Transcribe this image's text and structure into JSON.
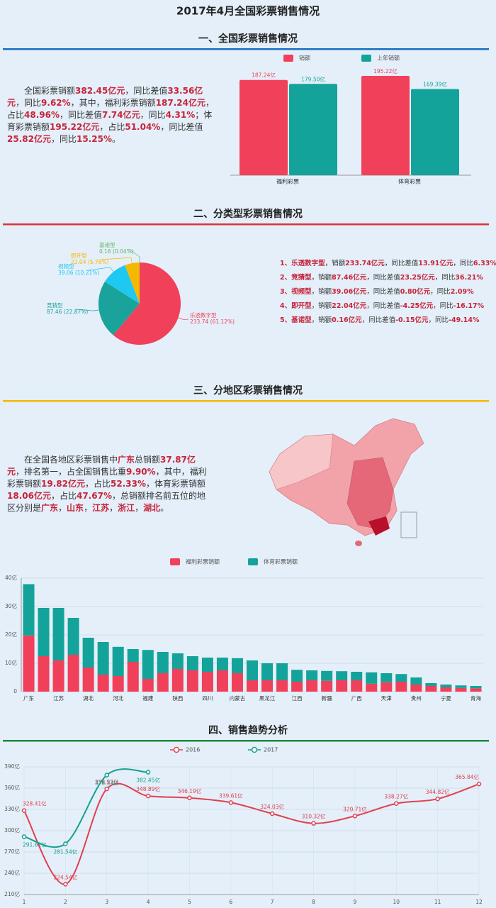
{
  "title": "2017年4月全国彩票销售情况",
  "sections": [
    {
      "title": "一、全国彩票销售情况",
      "color": "#1a6fc0"
    },
    {
      "title": "二、分类型彩票销售情况",
      "color": "#d9343a"
    },
    {
      "title": "三、分地区彩票销售情况",
      "color": "#f5b800"
    },
    {
      "title": "四、销售趋势分析",
      "color": "#1f8a3a"
    }
  ],
  "summary": [
    "全国彩票销额",
    "382.45亿元",
    "，同比差值",
    "33.56亿元",
    "，同比",
    "9.62%",
    "，其中，福利彩票销额",
    "187.24亿元",
    "，占比",
    "48.96%",
    "，同比差值",
    "7.74亿元",
    "，同比",
    "4.31%",
    "；体育彩票销额",
    "195.22亿元",
    "，占比",
    "51.04%",
    "，同比差值",
    "25.82亿元",
    "，同比",
    "15.25%",
    "。"
  ],
  "type_notes": [
    [
      "1、乐透数字型",
      "，销额",
      "233.74亿元",
      "，同比差值",
      "13.91亿元",
      "，同比",
      "6.33%"
    ],
    [
      "2、竞猜型",
      "，销额",
      "87.46亿元",
      "，同比差值",
      "23.25亿元",
      "，同比",
      "36.21%"
    ],
    [
      "3、视频型",
      "，销额",
      "39.06亿元",
      "，同比差值",
      "0.80亿元",
      "，同比",
      "2.09%"
    ],
    [
      "4、即开型",
      "，销额",
      "22.04亿元",
      "，同比差值",
      "-4.25亿元",
      "，同比",
      "-16.17%"
    ],
    [
      "5、基诺型",
      "，销额",
      "0.16亿元",
      "，同比差值",
      "-0.15亿元",
      "，同比",
      "-49.14%"
    ]
  ],
  "region_summary": [
    "在全国各地区彩票销售中",
    "广东",
    "总销额",
    "37.87亿元",
    "，排名第一，占全国销售比重",
    "9.90%",
    "，其中，福利彩票销额",
    "19.82亿元",
    "，占比",
    "52.33%",
    "，体育彩票销额",
    "18.06亿元",
    "，占比",
    "47.67%",
    "，总销额排名前五位的地区分别是",
    "广东",
    "，",
    "山东",
    "，",
    "江苏",
    "，",
    "浙江",
    "，",
    "湖北",
    "。"
  ],
  "chart_data": [
    {
      "type": "bar",
      "categories": [
        "福利彩票",
        "体育彩票"
      ],
      "series": [
        {
          "name": "销额",
          "color": "#f0405a",
          "values": [
            187.24,
            195.22
          ],
          "value_labels": [
            "187.24亿",
            "195.22亿"
          ]
        },
        {
          "name": "上年销额",
          "color": "#14a39a",
          "values": [
            179.5,
            169.39
          ],
          "value_labels": [
            "179.50亿",
            "169.39亿"
          ]
        }
      ]
    },
    {
      "type": "pie",
      "categories": [
        "乐透数字型",
        "竞猜型",
        "视频型",
        "即开型",
        "基诺型"
      ],
      "values": [
        233.74,
        87.46,
        39.06,
        22.04,
        0.16
      ],
      "value_labels": [
        "233.74 (61.12%)",
        "87.46 (22.87%)",
        "39.06 (10.21%)",
        "22.04 (5.76%)",
        "0.16 (0.04%)"
      ],
      "colors": [
        "#f0405a",
        "#1aa39a",
        "#1ec8f0",
        "#f5b800",
        "#5cb85c"
      ]
    },
    {
      "type": "stacked_bar",
      "categories": [
        "广东",
        null,
        "江苏",
        null,
        "湖北",
        null,
        "河北",
        null,
        "福建",
        null,
        "陕西",
        null,
        "四川",
        null,
        "内蒙古",
        null,
        "黑龙江",
        null,
        "江西",
        null,
        "新疆",
        null,
        "广西",
        null,
        "天津",
        null,
        "贵州",
        null,
        "宁夏",
        null,
        "青海"
      ],
      "series": [
        {
          "name": "福利彩票销额",
          "color": "#f0405a",
          "values": [
            19.82,
            12.5,
            11,
            13,
            8.5,
            6,
            5.5,
            10.5,
            4.5,
            6.5,
            8,
            7.5,
            7,
            7.5,
            6.5,
            4,
            4,
            4,
            3.5,
            4,
            3.8,
            4,
            4,
            2.8,
            3.3,
            3.5,
            2.5,
            2,
            1.5,
            1.3,
            1.2
          ]
        },
        {
          "name": "体育彩票销额",
          "color": "#14a39a",
          "values": [
            18.06,
            17,
            18.5,
            13,
            10.5,
            11.5,
            10.3,
            4.5,
            10.2,
            7.5,
            5.5,
            5,
            5,
            4.5,
            5.3,
            7,
            6,
            6,
            4.2,
            3.5,
            3.5,
            3.2,
            3,
            4,
            3.2,
            2.7,
            2.5,
            1,
            1,
            0.9,
            0.8
          ]
        }
      ],
      "ylim": [
        0,
        40
      ],
      "yticks": [
        0,
        {
          "value": 10,
          "label": "10亿"
        },
        {
          "value": 20,
          "label": "20亿"
        },
        {
          "value": 30,
          "label": "30亿"
        },
        {
          "value": 40,
          "label": "40亿"
        }
      ],
      "grid": true
    },
    {
      "type": "line",
      "x": [
        1,
        2,
        3,
        4,
        5,
        6,
        7,
        8,
        9,
        10,
        11,
        12
      ],
      "series": [
        {
          "name": "2016",
          "color": "#e0404f",
          "values": [
            328.41,
            224.54,
            358.92,
            348.89,
            346.19,
            339.61,
            324.03,
            310.32,
            320.71,
            338.27,
            344.82,
            365.84
          ],
          "value_labels": [
            "328.41亿",
            "224.54亿",
            "358.92亿",
            "348.89亿",
            "346.19亿",
            "339.61亿",
            "324.03亿",
            "310.32亿",
            "320.71亿",
            "338.27亿",
            "344.82亿",
            "365.84亿"
          ]
        },
        {
          "name": "2017",
          "color": "#16a08f",
          "values": [
            291.61,
            281.54,
            378.33,
            382.45,
            null,
            null,
            null,
            null,
            null,
            null,
            null,
            null
          ],
          "value_labels": [
            "291.61亿",
            "281.54亿",
            "378.33亿",
            "382.45亿",
            null,
            null,
            null,
            null,
            null,
            null,
            null,
            null
          ]
        }
      ],
      "xlim": [
        1,
        12
      ],
      "xticks": [
        1,
        2,
        3,
        4,
        5,
        6,
        7,
        8,
        9,
        10,
        11,
        12
      ],
      "ylim": [
        210,
        390
      ],
      "yticks": [
        {
          "value": 210,
          "label": "210亿"
        },
        {
          "value": 240,
          "label": "240亿"
        },
        {
          "value": 270,
          "label": "270亿"
        },
        {
          "value": 300,
          "label": "300亿"
        },
        {
          "value": 330,
          "label": "330亿"
        },
        {
          "value": 360,
          "label": "360亿"
        },
        {
          "value": 390,
          "label": "390亿"
        }
      ],
      "grid": true
    }
  ]
}
